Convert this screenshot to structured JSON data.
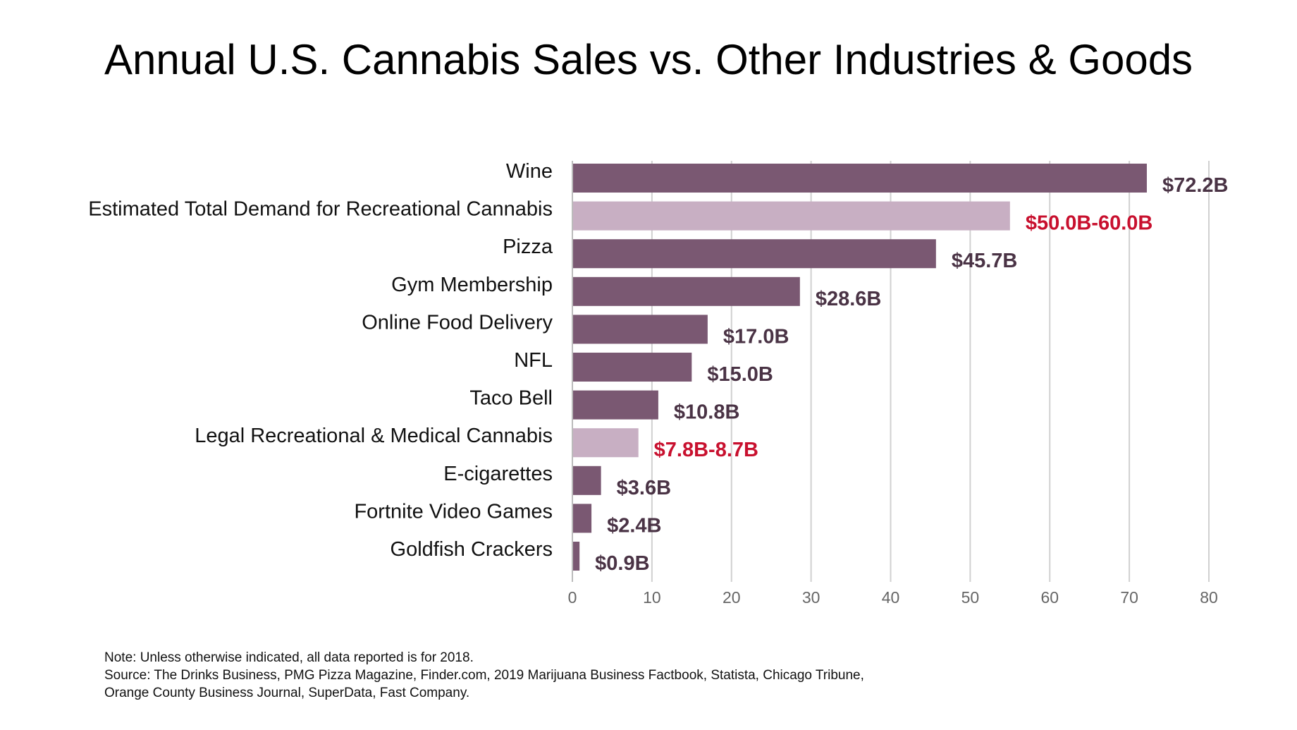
{
  "chart_data": {
    "type": "bar",
    "orientation": "horizontal",
    "title": "Annual U.S. Cannabis Sales vs. Other Industries & Goods",
    "xlabel": "",
    "ylabel": "",
    "xlim": [
      0,
      80
    ],
    "x_ticks": [
      "0",
      "10",
      "20",
      "30",
      "40",
      "50",
      "60",
      "70",
      "80"
    ],
    "grid": "vertical",
    "legend": "none",
    "colors": {
      "bar": "#7a5872",
      "highlight_bar": "#c8afc3",
      "label": "#4a3345",
      "highlight_label": "#c8102e"
    },
    "categories": [
      "Wine",
      "Estimated Total Demand for Recreational Cannabis",
      "Pizza",
      "Gym Membership",
      "Online Food Delivery",
      "NFL",
      "Taco Bell",
      "Legal Recreational & Medical Cannabis",
      "E-cigarettes",
      "Fortnite Video Games",
      "Goldfish Crackers"
    ],
    "values": [
      72.2,
      55.0,
      45.7,
      28.6,
      17.0,
      15.0,
      10.8,
      8.3,
      3.6,
      2.4,
      0.9
    ],
    "value_labels": [
      "$72.2B",
      "$50.0B-60.0B",
      "$45.7B",
      "$28.6B",
      "$17.0B",
      "$15.0B",
      "$10.8B",
      "$7.8B-8.7B",
      "$3.6B",
      "$2.4B",
      "$0.9B"
    ],
    "highlight": [
      false,
      true,
      false,
      false,
      false,
      false,
      false,
      true,
      false,
      false,
      false
    ]
  },
  "notes": {
    "note": "Note: Unless otherwise indicated, all data reported is for 2018.",
    "source_line1": "Source: The Drinks Business, PMG Pizza Magazine, Finder.com, 2019 Marijuana Business Factbook, Statista, Chicago Tribune,",
    "source_line2": "Orange County Business Journal, SuperData, Fast Company."
  }
}
